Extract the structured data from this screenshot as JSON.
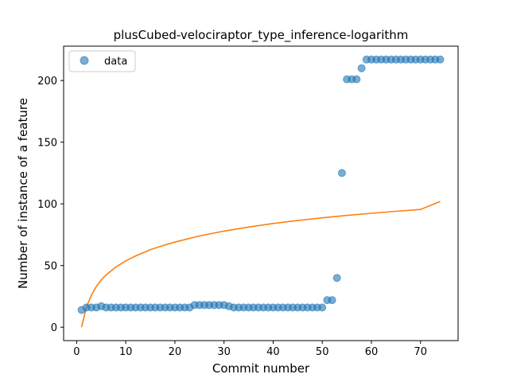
{
  "chart_data": {
    "type": "scatter",
    "title": "plusCubed-velociraptor_type_inference-logarithm",
    "xlabel": "Commit number",
    "ylabel": "Number of instance of a feature",
    "xlim": [
      -2.65,
      77.65
    ],
    "ylim": [
      -10.85,
      227.85
    ],
    "xticks": [
      0,
      10,
      20,
      30,
      40,
      50,
      60,
      70
    ],
    "yticks": [
      0,
      50,
      100,
      150,
      200
    ],
    "grid": false,
    "legend": {
      "placement": "top-left",
      "entries": [
        "data"
      ]
    },
    "series": [
      {
        "name": "data",
        "kind": "scatter",
        "color": "#1f77b4",
        "x": [
          1,
          2,
          3,
          4,
          5,
          6,
          7,
          8,
          9,
          10,
          11,
          12,
          13,
          14,
          15,
          16,
          17,
          18,
          19,
          20,
          21,
          22,
          23,
          24,
          25,
          26,
          27,
          28,
          29,
          30,
          31,
          32,
          33,
          34,
          35,
          36,
          37,
          38,
          39,
          40,
          41,
          42,
          43,
          44,
          45,
          46,
          47,
          48,
          49,
          50,
          51,
          52,
          53,
          54,
          55,
          56,
          57,
          58,
          59,
          60,
          61,
          62,
          63,
          64,
          65,
          66,
          67,
          68,
          69,
          70,
          71,
          72,
          73,
          74
        ],
        "y": [
          14,
          16,
          16,
          16,
          17,
          16,
          16,
          16,
          16,
          16,
          16,
          16,
          16,
          16,
          16,
          16,
          16,
          16,
          16,
          16,
          16,
          16,
          16,
          18,
          18,
          18,
          18,
          18,
          18,
          18,
          17,
          16,
          16,
          16,
          16,
          16,
          16,
          16,
          16,
          16,
          16,
          16,
          16,
          16,
          16,
          16,
          16,
          16,
          16,
          16,
          22,
          22,
          40,
          125,
          201,
          201,
          201,
          210,
          217,
          217,
          217,
          217,
          217,
          217,
          217,
          217,
          217,
          217,
          217,
          217,
          217,
          217,
          217,
          217
        ]
      },
      {
        "kind": "line",
        "color": "#ff7f0e",
        "x": [
          1,
          2,
          3,
          4,
          5,
          6,
          8,
          10,
          12,
          15,
          18,
          20,
          25,
          30,
          35,
          40,
          45,
          50,
          55,
          60,
          65,
          70,
          74
        ],
        "y": [
          0,
          16.5,
          25.9,
          33.0,
          38.3,
          42.4,
          48.9,
          53.8,
          57.8,
          62.8,
          66.7,
          69.0,
          74.0,
          77.9,
          81.2,
          84.1,
          86.5,
          88.7,
          90.6,
          92.4,
          94.0,
          95.5,
          102
        ]
      }
    ]
  }
}
